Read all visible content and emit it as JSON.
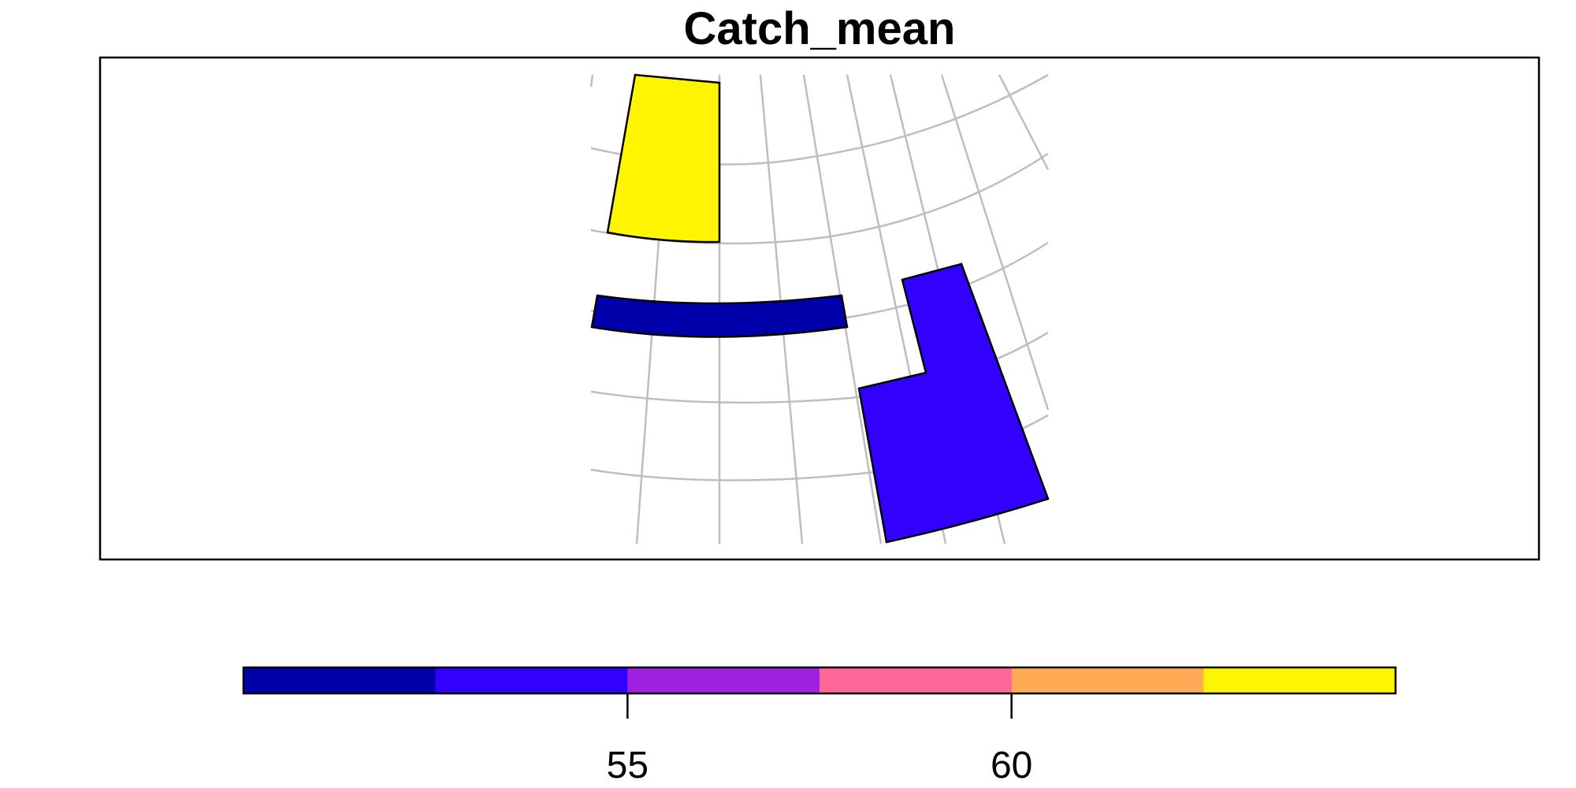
{
  "title": "Catch_mean",
  "legend": {
    "colors": [
      "#0000AA",
      "#3300FF",
      "#A020E0",
      "#FF6699",
      "#FFAA55",
      "#FFF500"
    ],
    "range": [
      50,
      65
    ],
    "ticks": [
      {
        "value": 55,
        "label": "55"
      },
      {
        "value": 60,
        "label": "60"
      }
    ]
  },
  "map_regions": [
    {
      "name": "north-cell",
      "fill": "#FFF500"
    },
    {
      "name": "central-band",
      "fill": "#0000AA"
    },
    {
      "name": "southeast-block",
      "fill": "#3300FF"
    }
  ],
  "graticule_color": "#BEBEBE"
}
